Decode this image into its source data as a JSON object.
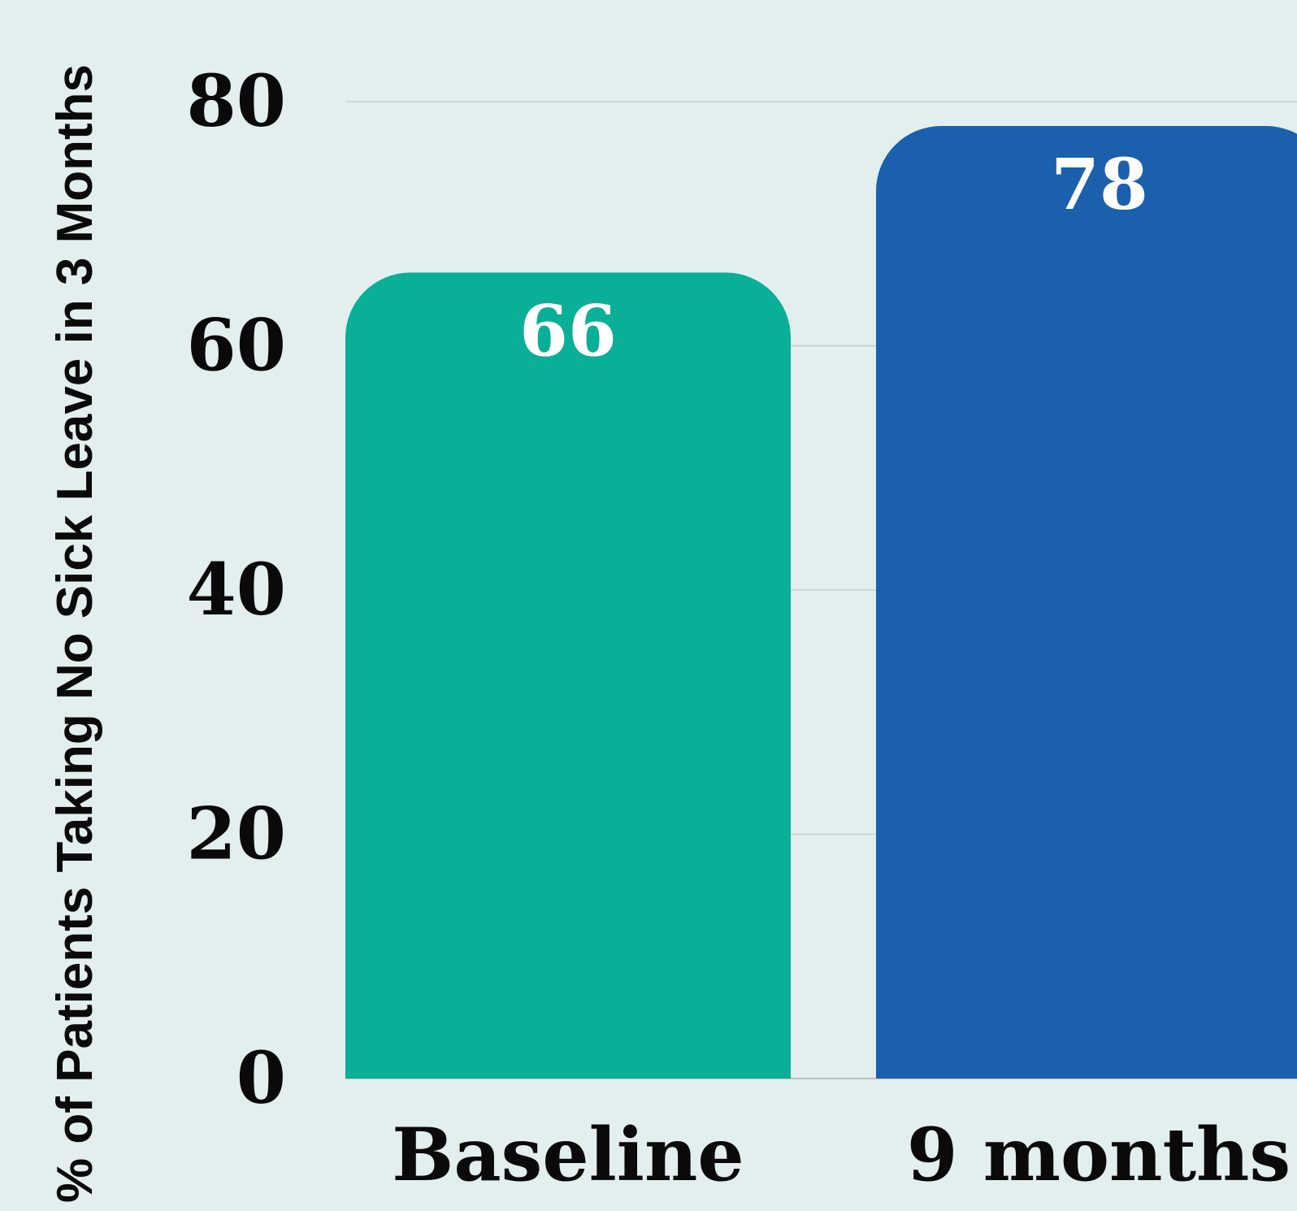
{
  "chart_data": {
    "type": "bar",
    "categories": [
      "Baseline",
      "9 months"
    ],
    "values": [
      66,
      78
    ],
    "value_labels": [
      "66",
      "78"
    ],
    "ylabel": "% of Patients Taking No Sick Leave in 3 Months",
    "xlabel": "",
    "ylim": [
      0,
      80
    ],
    "yticks": [
      "0",
      "20",
      "40",
      "60",
      "80"
    ],
    "grid": true,
    "colors": {
      "background": "#e2efee",
      "bars": [
        "#0aaf97",
        "#1a60ac"
      ],
      "gridline": "#c3cfcd",
      "baseline": "#b5c1bf",
      "value_label": "#ffffff",
      "text": "#0a0a0a"
    }
  }
}
